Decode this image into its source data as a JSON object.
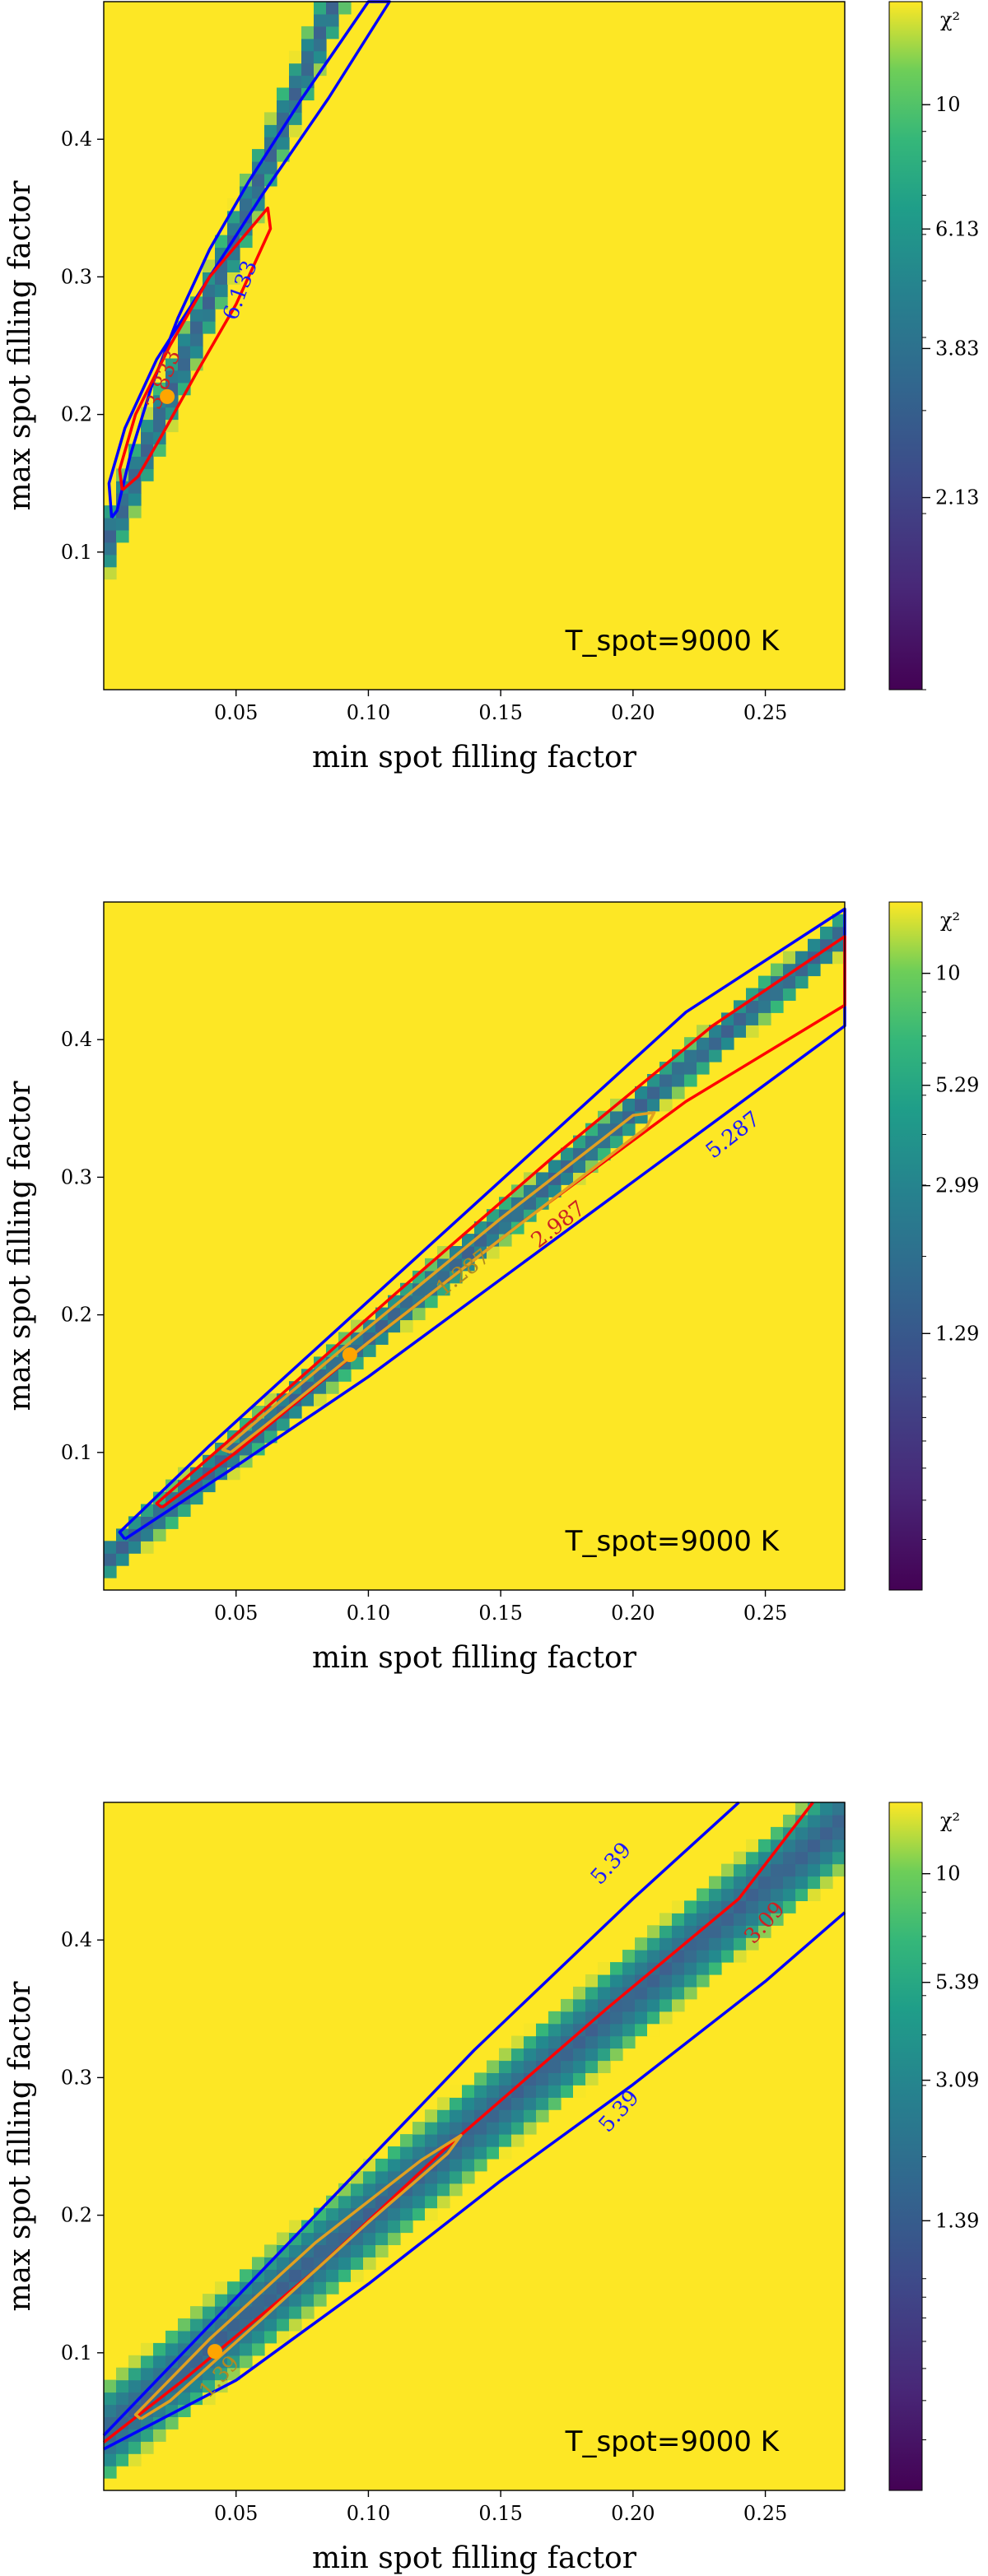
{
  "chart_data": [
    {
      "type": "heatmap",
      "xlabel": "min spot filling factor",
      "ylabel": "max spot filling factor",
      "xlim": [
        0.0,
        0.28
      ],
      "ylim": [
        0.0,
        0.5
      ],
      "xticks": [
        "0.05",
        "0.10",
        "0.15",
        "0.20",
        "0.25"
      ],
      "yticks": [
        "0.1",
        "0.2",
        "0.3",
        "0.4"
      ],
      "annotation": "T_spot=9000 K",
      "colorbar_title": "χ²",
      "colorbar_ticks": [
        "10",
        "6.13",
        "3.83",
        "2.13"
      ],
      "colorbar_range": [
        1.0,
        15.0
      ],
      "valley": {
        "slope": 4.6,
        "intercept": 0.1,
        "width": 0.022
      },
      "best_fit": {
        "x": 0.024,
        "y": 0.213
      },
      "contours": [
        {
          "level": "6.133",
          "color": "#0000ff",
          "points": [
            [
              0.003,
              0.125
            ],
            [
              0.002,
              0.15
            ],
            [
              0.008,
              0.19
            ],
            [
              0.02,
              0.24
            ],
            [
              0.04,
              0.3
            ],
            [
              0.06,
              0.36
            ],
            [
              0.085,
              0.43
            ],
            [
              0.108,
              0.5
            ],
            [
              0.1,
              0.5
            ],
            [
              0.075,
              0.43
            ],
            [
              0.055,
              0.37
            ],
            [
              0.04,
              0.32
            ],
            [
              0.028,
              0.27
            ],
            [
              0.018,
              0.22
            ],
            [
              0.01,
              0.17
            ],
            [
              0.005,
              0.13
            ],
            [
              0.003,
              0.125
            ]
          ]
        },
        {
          "level": "3.833",
          "color": "#ff0000",
          "points": [
            [
              0.007,
              0.145
            ],
            [
              0.006,
              0.16
            ],
            [
              0.012,
              0.2
            ],
            [
              0.025,
              0.25
            ],
            [
              0.04,
              0.3
            ],
            [
              0.062,
              0.35
            ],
            [
              0.063,
              0.335
            ],
            [
              0.05,
              0.28
            ],
            [
              0.035,
              0.23
            ],
            [
              0.022,
              0.185
            ],
            [
              0.013,
              0.155
            ],
            [
              0.007,
              0.145
            ]
          ]
        }
      ],
      "contour_labels": [
        {
          "text": "6.133",
          "x": 0.052,
          "y": 0.29,
          "color": "#1a1aff",
          "angle": -70
        },
        {
          "text": "3.833",
          "x": 0.023,
          "y": 0.225,
          "color": "#cc2222",
          "angle": -70
        }
      ]
    },
    {
      "type": "heatmap",
      "xlabel": "min spot filling factor",
      "ylabel": "max spot filling factor",
      "xlim": [
        0.0,
        0.28
      ],
      "ylim": [
        0.0,
        0.5
      ],
      "xticks": [
        "0.05",
        "0.10",
        "0.15",
        "0.20",
        "0.25"
      ],
      "yticks": [
        "0.1",
        "0.2",
        "0.3",
        "0.4"
      ],
      "annotation": "T_spot=9000 K",
      "colorbar_title": "χ²",
      "colorbar_ticks": [
        "10",
        "5.29",
        "2.99",
        "1.29"
      ],
      "colorbar_range": [
        0.3,
        15.0
      ],
      "valley": {
        "slope": 1.64,
        "intercept": 0.02,
        "width": 0.013
      },
      "best_fit": {
        "x": 0.093,
        "y": 0.171
      },
      "contours": [
        {
          "level": "5.287",
          "color": "#0000ff",
          "points": [
            [
              0.008,
              0.037
            ],
            [
              0.006,
              0.042
            ],
            [
              0.04,
              0.105
            ],
            [
              0.1,
              0.21
            ],
            [
              0.16,
              0.315
            ],
            [
              0.22,
              0.42
            ],
            [
              0.28,
              0.495
            ],
            [
              0.28,
              0.41
            ],
            [
              0.22,
              0.325
            ],
            [
              0.16,
              0.24
            ],
            [
              0.1,
              0.155
            ],
            [
              0.05,
              0.09
            ],
            [
              0.008,
              0.037
            ]
          ]
        },
        {
          "level": "2.987",
          "color": "#ff0000",
          "points": [
            [
              0.022,
              0.06
            ],
            [
              0.02,
              0.063
            ],
            [
              0.06,
              0.13
            ],
            [
              0.11,
              0.215
            ],
            [
              0.17,
              0.315
            ],
            [
              0.23,
              0.41
            ],
            [
              0.28,
              0.475
            ],
            [
              0.28,
              0.425
            ],
            [
              0.22,
              0.355
            ],
            [
              0.16,
              0.27
            ],
            [
              0.1,
              0.18
            ],
            [
              0.05,
              0.1
            ],
            [
              0.022,
              0.06
            ]
          ]
        },
        {
          "level": "1.287",
          "color": "#e0a020",
          "points": [
            [
              0.048,
              0.1
            ],
            [
              0.045,
              0.102
            ],
            [
              0.09,
              0.175
            ],
            [
              0.15,
              0.27
            ],
            [
              0.2,
              0.345
            ],
            [
              0.208,
              0.347
            ],
            [
              0.205,
              0.336
            ],
            [
              0.15,
              0.255
            ],
            [
              0.1,
              0.18
            ],
            [
              0.06,
              0.118
            ],
            [
              0.048,
              0.1
            ]
          ]
        }
      ],
      "contour_labels": [
        {
          "text": "5.287",
          "x": 0.238,
          "y": 0.33,
          "color": "#1a1aff",
          "angle": -38
        },
        {
          "text": "2.987",
          "x": 0.172,
          "y": 0.265,
          "color": "#cc2222",
          "angle": -38
        },
        {
          "text": "1.287",
          "x": 0.136,
          "y": 0.23,
          "color": "#b08a20",
          "angle": -38
        }
      ]
    },
    {
      "type": "heatmap",
      "xlabel": "min spot filling factor",
      "ylabel": "max spot filling factor",
      "xlim": [
        0.0,
        0.28
      ],
      "ylim": [
        0.0,
        0.5
      ],
      "xticks": [
        "0.05",
        "0.10",
        "0.15",
        "0.20",
        "0.25"
      ],
      "yticks": [
        "0.1",
        "0.2",
        "0.3",
        "0.4"
      ],
      "annotation": "T_spot=9000 K",
      "colorbar_title": "χ²",
      "colorbar_ticks": [
        "10",
        "5.39",
        "3.09",
        "1.39"
      ],
      "colorbar_range": [
        0.3,
        15.0
      ],
      "valley": {
        "slope": 1.6,
        "intercept": 0.04,
        "width": 0.03
      },
      "best_fit": {
        "x": 0.042,
        "y": 0.101
      },
      "contours": [
        {
          "level": "5.39",
          "color": "#0000ff",
          "points": [
            [
              0.0,
              0.04
            ],
            [
              0.03,
              0.1
            ],
            [
              0.08,
              0.2
            ],
            [
              0.14,
              0.32
            ],
            [
              0.2,
              0.43
            ],
            [
              0.24,
              0.5
            ]
          ]
        },
        {
          "level": "5.39",
          "color": "#0000ff",
          "points": [
            [
              0.0,
              0.03
            ],
            [
              0.05,
              0.08
            ],
            [
              0.1,
              0.15
            ],
            [
              0.15,
              0.225
            ],
            [
              0.2,
              0.295
            ],
            [
              0.25,
              0.37
            ],
            [
              0.28,
              0.42
            ]
          ]
        },
        {
          "level": "3.09",
          "color": "#ff0000",
          "points": [
            [
              0.0,
              0.035
            ],
            [
              0.03,
              0.08
            ],
            [
              0.08,
              0.16
            ],
            [
              0.13,
              0.25
            ],
            [
              0.19,
              0.35
            ],
            [
              0.24,
              0.43
            ],
            [
              0.268,
              0.5
            ]
          ]
        },
        {
          "level": "1.39",
          "color": "#e0a020",
          "points": [
            [
              0.014,
              0.052
            ],
            [
              0.012,
              0.055
            ],
            [
              0.04,
              0.11
            ],
            [
              0.08,
              0.18
            ],
            [
              0.12,
              0.24
            ],
            [
              0.135,
              0.258
            ],
            [
              0.13,
              0.245
            ],
            [
              0.1,
              0.195
            ],
            [
              0.06,
              0.125
            ],
            [
              0.025,
              0.065
            ],
            [
              0.014,
              0.052
            ]
          ]
        }
      ],
      "contour_labels": [
        {
          "text": "5.39",
          "x": 0.192,
          "y": 0.455,
          "color": "#1a1aff",
          "angle": -48
        },
        {
          "text": "3.09",
          "x": 0.25,
          "y": 0.412,
          "color": "#cc2222",
          "angle": -48
        },
        {
          "text": "5.39",
          "x": 0.195,
          "y": 0.275,
          "color": "#1a1aff",
          "angle": -48
        },
        {
          "text": "1.39",
          "x": 0.044,
          "y": 0.082,
          "color": "#b08a20",
          "angle": -48
        }
      ]
    }
  ],
  "colors": {
    "high": "#fde725",
    "valley_floor": "#3e5f8e",
    "valley_mid": "#23898e",
    "valley_edge": "#35b779",
    "best_fit_marker": "#ffa500"
  }
}
